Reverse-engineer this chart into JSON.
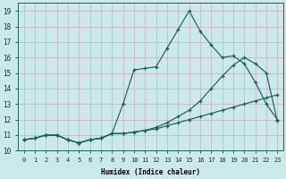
{
  "xlabel": "Humidex (Indice chaleur)",
  "ylabel": "",
  "background_color": "#cce9e9",
  "grid_color": "#aed0d0",
  "line_color": "#1a6060",
  "xlim": [
    -0.5,
    23.5
  ],
  "ylim": [
    10.0,
    19.5
  ],
  "yticks": [
    10,
    11,
    12,
    13,
    14,
    15,
    16,
    17,
    18,
    19
  ],
  "xticks": [
    0,
    1,
    2,
    3,
    4,
    5,
    6,
    7,
    8,
    9,
    10,
    11,
    12,
    13,
    14,
    15,
    16,
    17,
    18,
    19,
    20,
    21,
    22,
    23
  ],
  "series": [
    {
      "x": [
        0,
        1,
        2,
        3,
        4,
        5,
        6,
        7,
        8,
        9,
        10,
        11,
        12,
        13,
        14,
        15,
        16,
        17,
        18,
        19,
        20,
        21,
        22,
        23
      ],
      "y": [
        10.7,
        10.8,
        11.0,
        11.0,
        10.7,
        10.5,
        10.7,
        10.8,
        11.1,
        13.0,
        15.2,
        15.3,
        15.4,
        16.6,
        17.8,
        19.0,
        17.7,
        16.8,
        16.0,
        16.1,
        15.6,
        14.4,
        13.0,
        12.0
      ]
    },
    {
      "x": [
        0,
        1,
        2,
        3,
        4,
        5,
        6,
        7,
        8,
        9,
        10,
        11,
        12,
        13,
        14,
        15,
        16,
        17,
        18,
        19,
        20,
        21,
        22,
        23
      ],
      "y": [
        10.7,
        10.8,
        11.0,
        11.0,
        10.7,
        10.5,
        10.7,
        10.8,
        11.1,
        11.1,
        11.2,
        11.3,
        11.5,
        11.8,
        12.2,
        12.6,
        13.2,
        14.0,
        14.8,
        15.5,
        16.0,
        15.6,
        15.0,
        11.9
      ]
    },
    {
      "x": [
        0,
        1,
        2,
        3,
        4,
        5,
        6,
        7,
        8,
        9,
        10,
        11,
        12,
        13,
        14,
        15,
        16,
        17,
        18,
        19,
        20,
        21,
        22,
        23
      ],
      "y": [
        10.7,
        10.8,
        11.0,
        11.0,
        10.7,
        10.5,
        10.7,
        10.8,
        11.1,
        11.1,
        11.2,
        11.3,
        11.4,
        11.6,
        11.8,
        12.0,
        12.2,
        12.4,
        12.6,
        12.8,
        13.0,
        13.2,
        13.4,
        13.6
      ]
    }
  ]
}
